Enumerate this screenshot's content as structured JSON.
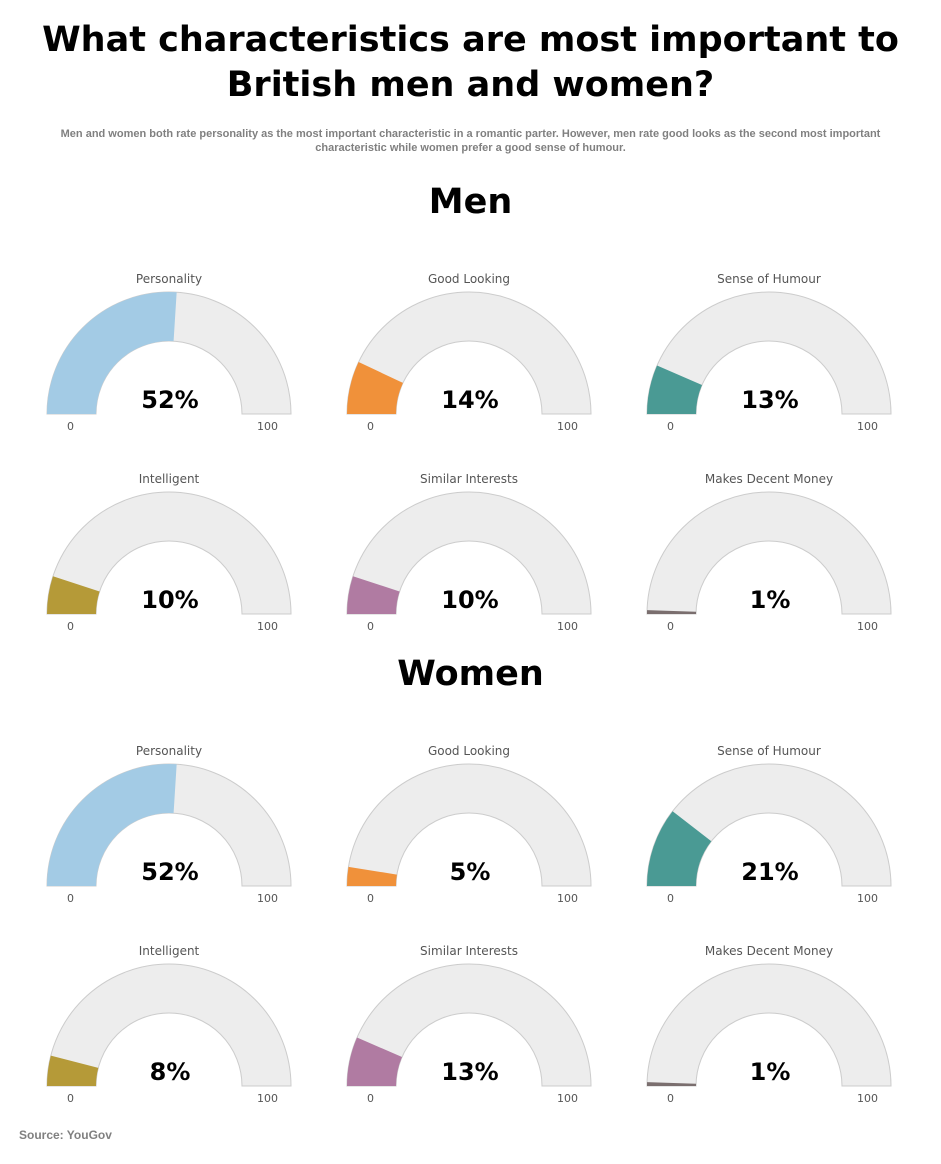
{
  "title": "What characteristics are most important to British men and women?",
  "subtitle": "Men and women both rate personality as the most important characteristic in a romantic parter. However, men rate good looks as the second most important characteristic while women prefer a good sense of humour.",
  "source": "Source: YouGov",
  "chart_data": [
    {
      "type": "gauge",
      "title": "Men",
      "min": 0,
      "max": 100,
      "min_label": "0",
      "max_label": "100",
      "series": [
        {
          "name": "Personality",
          "value": 52,
          "label": "52%",
          "color": "#a3cbe5"
        },
        {
          "name": "Good Looking",
          "value": 14,
          "label": "14%",
          "color": "#f0913a"
        },
        {
          "name": "Sense of Humour",
          "value": 13,
          "label": "13%",
          "color": "#4a9a94"
        },
        {
          "name": "Intelligent",
          "value": 10,
          "label": "10%",
          "color": "#b59a38"
        },
        {
          "name": "Similar Interests",
          "value": 10,
          "label": "10%",
          "color": "#b07ba2"
        },
        {
          "name": "Makes Decent Money",
          "value": 1,
          "label": "1%",
          "color": "#7a6e6e"
        }
      ]
    },
    {
      "type": "gauge",
      "title": "Women",
      "min": 0,
      "max": 100,
      "min_label": "0",
      "max_label": "100",
      "series": [
        {
          "name": "Personality",
          "value": 52,
          "label": "52%",
          "color": "#a3cbe5"
        },
        {
          "name": "Good Looking",
          "value": 5,
          "label": "5%",
          "color": "#f0913a"
        },
        {
          "name": "Sense of Humour",
          "value": 21,
          "label": "21%",
          "color": "#4a9a94"
        },
        {
          "name": "Intelligent",
          "value": 8,
          "label": "8%",
          "color": "#b59a38"
        },
        {
          "name": "Similar Interests",
          "value": 13,
          "label": "13%",
          "color": "#b07ba2"
        },
        {
          "name": "Makes Decent Money",
          "value": 1,
          "label": "1%",
          "color": "#7a6e6e"
        }
      ]
    }
  ],
  "track_color": "#ededed"
}
